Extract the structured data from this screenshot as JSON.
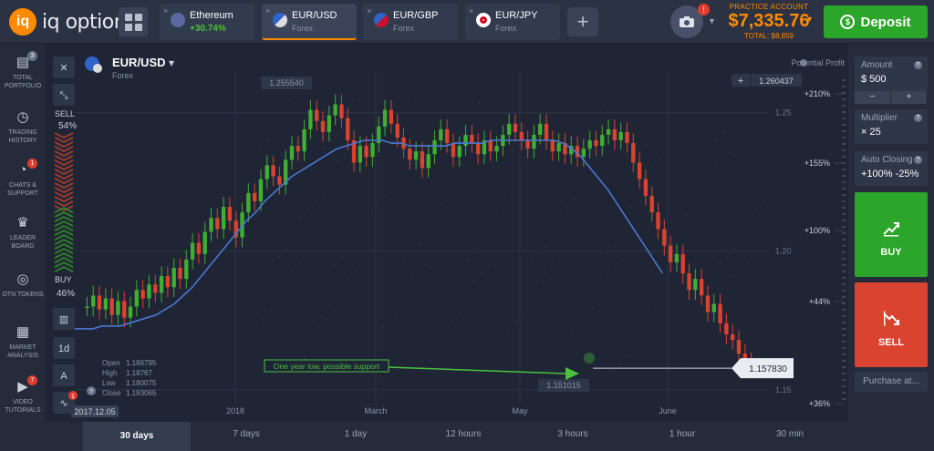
{
  "brand": {
    "name": "iq option",
    "mark": "iq"
  },
  "tabs": [
    {
      "name": "Ethereum",
      "sub": "+30.74%",
      "sub_green": true,
      "flag": "eth",
      "active": false
    },
    {
      "name": "EUR/USD",
      "sub": "Forex",
      "sub_green": false,
      "flag": "eurusd",
      "active": true
    },
    {
      "name": "EUR/GBP",
      "sub": "Forex",
      "sub_green": false,
      "flag": "gbp",
      "active": false
    },
    {
      "name": "EUR/JPY",
      "sub": "Forex",
      "sub_green": false,
      "flag": "jpy",
      "active": false
    }
  ],
  "tab_close": "×",
  "add_tab": "+",
  "camera_badge": "!",
  "account": {
    "label": "PRACTICE ACCOUNT",
    "balance": "$7,335.76",
    "total": "TOTAL: $8,859"
  },
  "deposit": {
    "label": "Deposit",
    "icon": "$"
  },
  "sidebar": [
    {
      "label": "TOTAL PORTFOLIO",
      "icon": "briefcase-icon",
      "glyph": "▤",
      "badge": "3",
      "badge_grey": true
    },
    {
      "label": "TRADING HISTORY",
      "icon": "history-icon",
      "glyph": "◷",
      "badge": "",
      "badge_grey": false
    },
    {
      "label": "CHATS & SUPPORT",
      "icon": "chat-icon",
      "glyph": "◔",
      "badge": "1",
      "badge_grey": false
    },
    {
      "label": "LEADER BOARD",
      "icon": "leaderboard-icon",
      "glyph": "♛",
      "badge": "",
      "badge_grey": false
    },
    {
      "label": "OTN TOKENS",
      "icon": "token-icon",
      "glyph": "◎",
      "badge": "",
      "badge_grey": false
    },
    {
      "label": "MARKET ANALYSIS",
      "icon": "analysis-icon",
      "glyph": "▦",
      "badge": "",
      "badge_grey": false
    },
    {
      "label": "VIDEO TUTORIALS",
      "icon": "video-icon",
      "glyph": "▶",
      "badge": "7",
      "badge_grey": false
    }
  ],
  "asset": {
    "name": "EUR/USD",
    "type": "Forex",
    "dropdown": "▾"
  },
  "potential_profit": "Potential Profit",
  "sentiment": {
    "sell_label": "SELL",
    "sell_pct": "54%",
    "buy_label": "BUY",
    "buy_pct": "46%",
    "sell_fraction": 0.54
  },
  "tools": {
    "close": "✕",
    "collapse": "⤡",
    "candles": "▥",
    "timeframe": "1d",
    "draw": "A",
    "indicators": "∿",
    "indicators_badge": "1",
    "help": "?"
  },
  "chart_data": {
    "type": "candlestick",
    "x_ticks": [
      "2018",
      "March",
      "May",
      "June"
    ],
    "y_ticks": [
      "1.25",
      "1.20",
      "1.15"
    ],
    "ylim": [
      1.145,
      1.265
    ],
    "profit_ticks": [
      "+210%",
      "+155%",
      "+100%",
      "+44%",
      "+36%"
    ],
    "price_high_marker": "1.255540",
    "price_right_marker": "1.260437",
    "price_right_plus": "+",
    "current_price": "1.157830",
    "low_price": "1.151015",
    "start_date": "2017.12.05",
    "ohlc": {
      "open_label": "Open",
      "open": "1.186795",
      "high_label": "High",
      "high": "1.18767",
      "low_label": "Low",
      "low": "1.180075",
      "close_label": "Close",
      "close": "1.183065"
    },
    "annotation": "One year low, possible support",
    "closes": [
      1.18,
      1.184,
      1.179,
      1.183,
      1.177,
      1.182,
      1.176,
      1.18,
      1.186,
      1.183,
      1.188,
      1.185,
      1.191,
      1.187,
      1.194,
      1.19,
      1.197,
      1.203,
      1.199,
      1.207,
      1.212,
      1.208,
      1.216,
      1.211,
      1.205,
      1.214,
      1.221,
      1.218,
      1.226,
      1.231,
      1.227,
      1.224,
      1.233,
      1.238,
      1.236,
      1.244,
      1.251,
      1.247,
      1.243,
      1.249,
      1.253,
      1.248,
      1.24,
      1.232,
      1.238,
      1.234,
      1.239,
      1.245,
      1.251,
      1.246,
      1.241,
      1.237,
      1.233,
      1.236,
      1.23,
      1.235,
      1.24,
      1.244,
      1.239,
      1.234,
      1.238,
      1.242,
      1.239,
      1.235,
      1.24,
      1.236,
      1.238,
      1.242,
      1.246,
      1.243,
      1.24,
      1.237,
      1.242,
      1.246,
      1.24,
      1.236,
      1.239,
      1.235,
      1.238,
      1.234,
      1.237,
      1.24,
      1.238,
      1.242,
      1.244,
      1.24,
      1.243,
      1.239,
      1.232,
      1.226,
      1.22,
      1.214,
      1.208,
      1.202,
      1.196,
      1.199,
      1.192,
      1.186,
      1.19,
      1.184,
      1.178,
      1.181,
      1.174,
      1.17,
      1.168,
      1.163,
      1.16,
      1.158
    ],
    "ma": [
      1.172,
      1.172,
      1.172,
      1.173,
      1.173,
      1.173,
      1.174,
      1.175,
      1.176,
      1.177,
      1.179,
      1.181,
      1.184,
      1.187,
      1.191,
      1.195,
      1.199,
      1.203,
      1.207,
      1.211,
      1.214,
      1.218,
      1.221,
      1.224,
      1.227,
      1.229,
      1.231,
      1.233,
      1.235,
      1.237,
      1.238,
      1.239,
      1.24,
      1.24,
      1.24,
      1.239,
      1.239,
      1.238,
      1.238,
      1.238,
      1.238,
      1.238,
      1.239,
      1.239,
      1.239,
      1.239,
      1.24,
      1.24,
      1.24,
      1.24,
      1.24,
      1.24,
      1.24,
      1.24,
      1.239,
      1.237,
      1.234,
      1.23,
      1.226,
      1.222,
      1.217,
      1.212,
      1.207,
      1.202,
      1.197,
      1.192
    ]
  },
  "timeframes": [
    "30 days",
    "7 days",
    "1 day",
    "12 hours",
    "3 hours",
    "1 hour",
    "30 min"
  ],
  "right_panel": {
    "amount_label": "Amount",
    "amount_value": "$  500",
    "minus": "−",
    "plus": "+",
    "multiplier_label": "Multiplier",
    "multiplier_value": "× 25",
    "auto_label": "Auto Closing",
    "auto_value": "+100%  -25%",
    "q": "?",
    "buy_label": "BUY",
    "sell_label": "SELL",
    "purchase_label": "Purchase at..."
  },
  "colors": {
    "green": "#2ba52a",
    "red": "#d9432f",
    "orange": "#ff8a00",
    "ma": "#4a78d4"
  }
}
